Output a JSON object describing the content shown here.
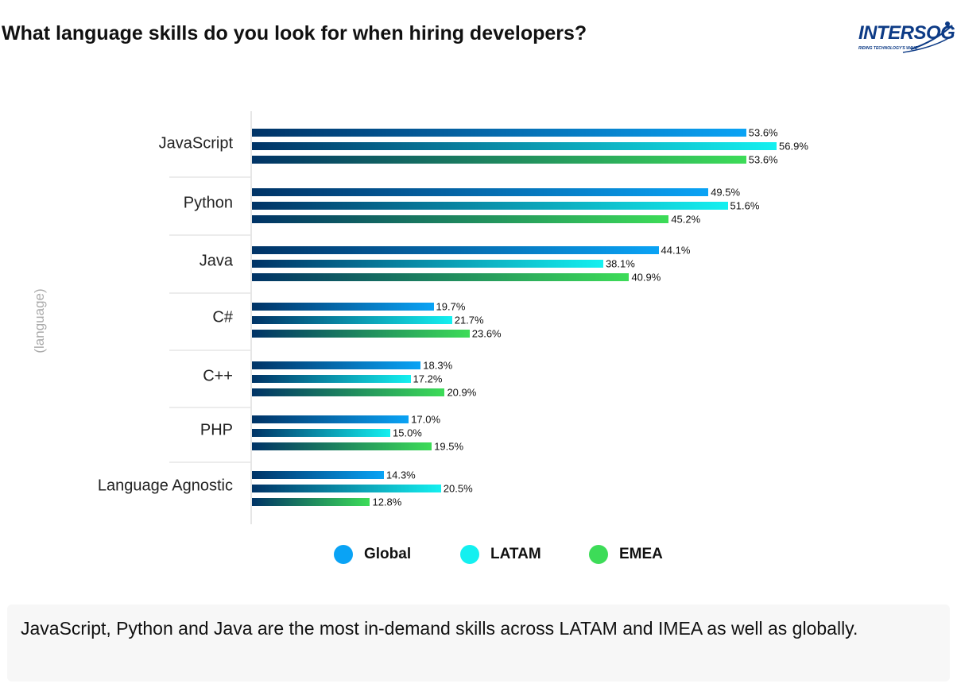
{
  "title": "What language skills do you look for when hiring developers?",
  "logo": {
    "text": "INTERSOG",
    "tagline": "RIDING TECHNOLOGY'S WAVE"
  },
  "chart_data": {
    "type": "bar",
    "orientation": "horizontal",
    "title": "What language skills do you look for when hiring developers?",
    "ylabel": "(language)",
    "xlabel": "",
    "categories": [
      "JavaScript",
      "Python",
      "Java",
      "C#",
      "C++",
      "PHP",
      "Language Agnostic"
    ],
    "series": [
      {
        "name": "Global",
        "color": "#0aa3f5",
        "values": [
          53.6,
          49.5,
          44.1,
          19.7,
          18.3,
          17.0,
          14.3
        ]
      },
      {
        "name": "LATAM",
        "color": "#14f0f0",
        "values": [
          56.9,
          51.6,
          38.1,
          21.7,
          17.2,
          15.0,
          20.5
        ]
      },
      {
        "name": "EMEA",
        "color": "#3ddc58",
        "values": [
          53.6,
          45.2,
          40.9,
          23.6,
          20.9,
          19.5,
          12.8
        ]
      }
    ],
    "gradient_start_color": "#003366",
    "value_suffix": "%",
    "legend": "bottom",
    "grid": false
  },
  "note": "JavaScript, Python and Java are the most in-demand skills across LATAM and IMEA as well as globally."
}
